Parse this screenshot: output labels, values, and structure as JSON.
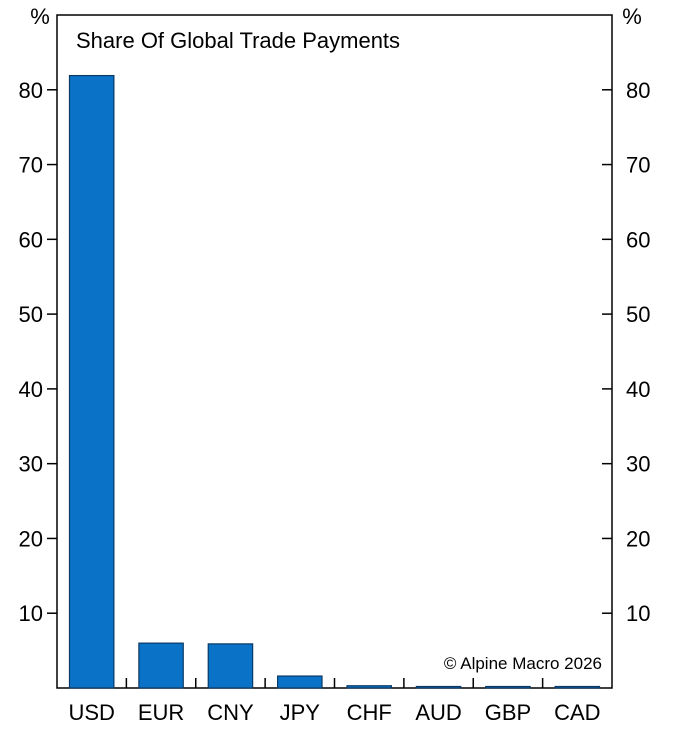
{
  "chart_data": {
    "type": "bar",
    "title": "Share Of Global Trade Payments",
    "categories": [
      "USD",
      "EUR",
      "CNY",
      "JPY",
      "CHF",
      "AUD",
      "GBP",
      "CAD"
    ],
    "values": [
      81.9,
      6.0,
      5.9,
      1.6,
      0.3,
      0.2,
      0.2,
      0.2
    ],
    "ylim": [
      0,
      90
    ],
    "yticks": [
      10,
      20,
      30,
      40,
      50,
      60,
      70,
      80
    ],
    "ylabel_left": "%",
    "ylabel_right": "%",
    "grid": false,
    "bar_color": "#0a72c7",
    "bar_edge_color": "#0b3a66"
  },
  "credit": "© Alpine Macro 2026"
}
